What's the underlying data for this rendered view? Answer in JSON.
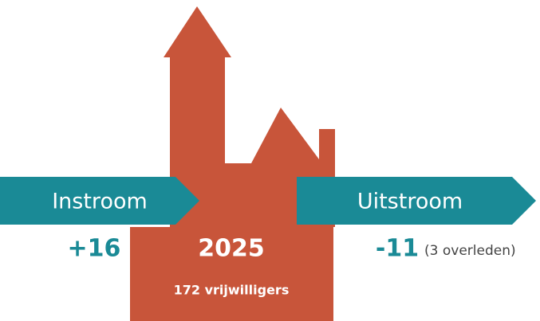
{
  "inflow": {
    "label": "Instroom",
    "value": "+16"
  },
  "center": {
    "year": "2025",
    "count": "172 vrijwilligers"
  },
  "outflow": {
    "label": "Uitstroom",
    "value": "-11",
    "note": "(3 overleden)"
  }
}
